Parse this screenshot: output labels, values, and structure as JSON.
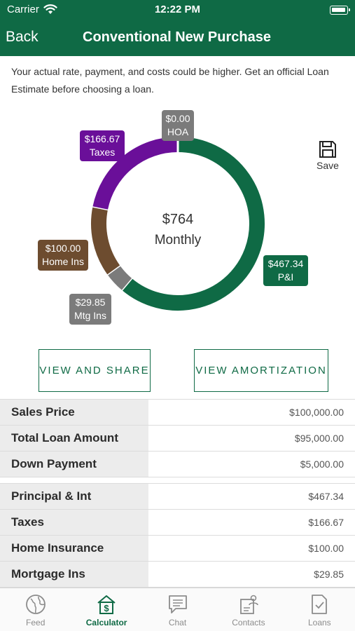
{
  "status_bar": {
    "carrier": "Carrier",
    "time": "12:22 PM"
  },
  "nav": {
    "back_label": "Back",
    "title": "Conventional New Purchase"
  },
  "disclaimer": "Your actual rate, payment, and costs could be higher. Get an official Loan Estimate before choosing a loan.",
  "chart": {
    "center_amount": "$764",
    "center_label": "Monthly",
    "segments": [
      {
        "key": "pi",
        "amount": "$467.34",
        "label": "P&I",
        "value": 467.34,
        "color": "#0f6a45"
      },
      {
        "key": "mtgins",
        "amount": "$29.85",
        "label": "Mtg Ins",
        "value": 29.85,
        "color": "#7b7b7b"
      },
      {
        "key": "homeins",
        "amount": "$100.00",
        "label": "Home Ins",
        "value": 100.0,
        "color": "#6d4c2f"
      },
      {
        "key": "taxes",
        "amount": "$166.67",
        "label": "Taxes",
        "value": 166.67,
        "color": "#6a0f99"
      },
      {
        "key": "hoa",
        "amount": "$0.00",
        "label": "HOA",
        "value": 0.0,
        "color": "#7b7b7b"
      }
    ]
  },
  "save_label": "Save",
  "buttons": {
    "share": "VIEW AND SHARE",
    "amortization": "VIEW AMORTIZATION"
  },
  "loan_table": [
    {
      "label": "Sales Price",
      "value": "$100,000.00"
    },
    {
      "label": "Total Loan Amount",
      "value": "$95,000.00"
    },
    {
      "label": "Down Payment",
      "value": "$5,000.00"
    }
  ],
  "payment_table": [
    {
      "label": "Principal & Int",
      "value": "$467.34"
    },
    {
      "label": "Taxes",
      "value": "$166.67"
    },
    {
      "label": "Home Insurance",
      "value": "$100.00"
    },
    {
      "label": "Mortgage Ins",
      "value": "$29.85"
    }
  ],
  "tabs": [
    {
      "label": "Feed",
      "icon": "globe-icon"
    },
    {
      "label": "Calculator",
      "icon": "calculator-icon",
      "active": true
    },
    {
      "label": "Chat",
      "icon": "chat-icon"
    },
    {
      "label": "Contacts",
      "icon": "contacts-icon"
    },
    {
      "label": "Loans",
      "icon": "document-icon"
    }
  ],
  "colors": {
    "brand": "#0f6a45",
    "taxes": "#6a0f99",
    "home_ins": "#6d4c2f",
    "neutral": "#7b7b7b"
  }
}
